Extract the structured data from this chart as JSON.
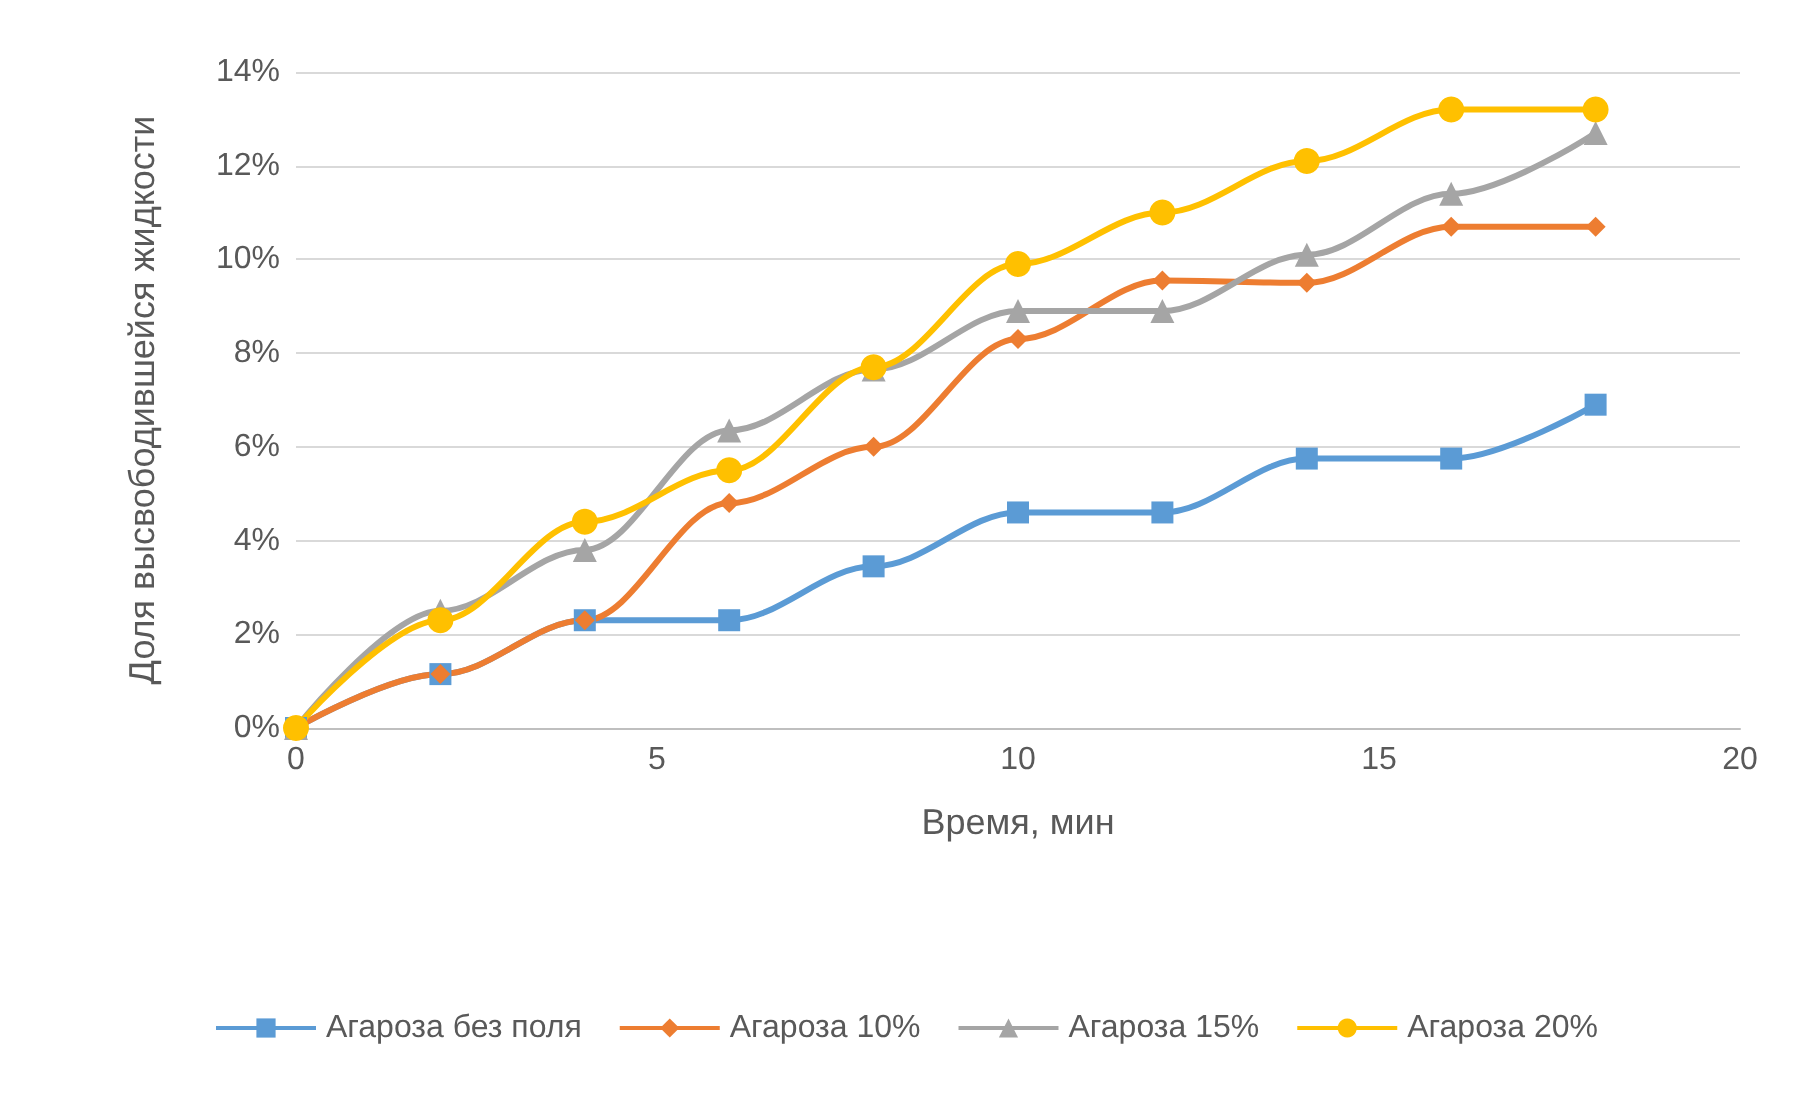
{
  "chart_data": {
    "type": "line",
    "xlabel": "Время, мин",
    "ylabel": "Доля высвободившейся жидкости",
    "xlim": [
      0,
      20
    ],
    "xticks": [
      0,
      5,
      10,
      15,
      20
    ],
    "ylim": [
      0,
      14
    ],
    "yticks": [
      {
        "value": 0,
        "label": "0%"
      },
      {
        "value": 2,
        "label": "2%"
      },
      {
        "value": 4,
        "label": "4%"
      },
      {
        "value": 6,
        "label": "6%"
      },
      {
        "value": 8,
        "label": "8%"
      },
      {
        "value": 10,
        "label": "10%"
      },
      {
        "value": 12,
        "label": "12%"
      },
      {
        "value": 14,
        "label": "14%"
      }
    ],
    "grid": "y",
    "legend": "bottom",
    "x": [
      0,
      2,
      4,
      6,
      8,
      10,
      12,
      14,
      16,
      18
    ],
    "series": [
      {
        "name": "Агароза без поля",
        "color": "#5b9bd5",
        "marker": "square",
        "values": [
          0,
          1.15,
          2.3,
          2.3,
          3.45,
          4.6,
          4.6,
          5.75,
          5.75,
          6.9
        ]
      },
      {
        "name": "Агароза 10%",
        "color": "#ed7d31",
        "marker": "diamond",
        "values": [
          0,
          1.15,
          2.3,
          4.8,
          6.0,
          8.3,
          9.55,
          9.5,
          10.7,
          10.7
        ]
      },
      {
        "name": "Агароза 15%",
        "color": "#a5a5a5",
        "marker": "triangle",
        "values": [
          0,
          2.5,
          3.8,
          6.35,
          7.65,
          8.9,
          8.9,
          10.1,
          11.4,
          12.7
        ]
      },
      {
        "name": "Агароза 20%",
        "color": "#ffc000",
        "marker": "circle",
        "values": [
          0,
          2.3,
          4.4,
          5.5,
          7.7,
          9.9,
          11.0,
          12.1,
          13.2,
          13.2
        ]
      }
    ]
  }
}
